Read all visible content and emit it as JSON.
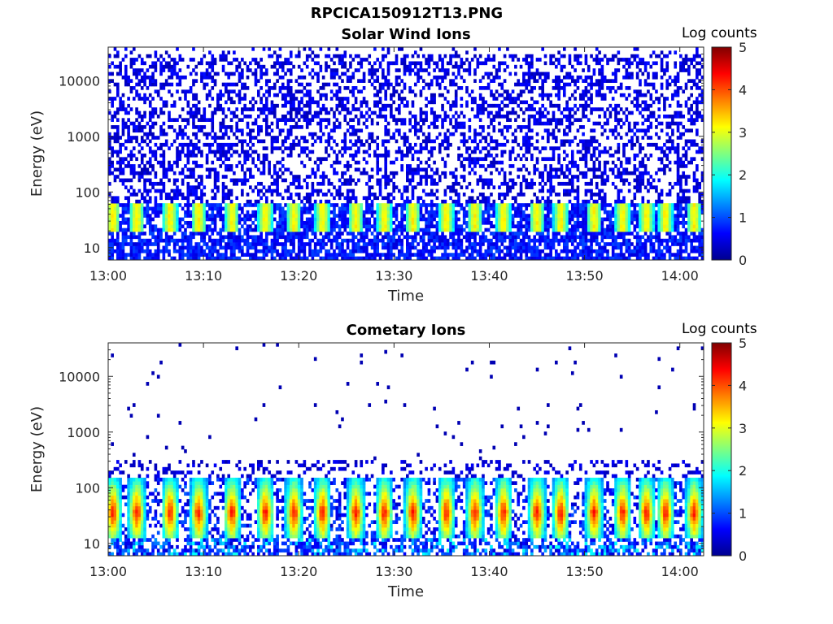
{
  "figure": {
    "title": "RPCICA150912T13.PNG"
  },
  "chart_data": [
    {
      "type": "heatmap",
      "title": "Solar Wind Ions",
      "xlabel": "Time",
      "ylabel": "Energy (eV)",
      "x_ticks": [
        "13:00",
        "13:10",
        "13:20",
        "13:30",
        "13:40",
        "13:50",
        "14:00"
      ],
      "x_range": [
        "13:00",
        "14:02"
      ],
      "y_scale": "log",
      "y_ticks": [
        "10",
        "100",
        "1000",
        "10000"
      ],
      "y_range": [
        6,
        40000
      ],
      "colorbar": {
        "label": "Log counts",
        "range": [
          0,
          5
        ],
        "ticks": [
          "0",
          "1",
          "2",
          "3",
          "4",
          "5"
        ]
      },
      "description_points": [
        {
          "time_min": 1,
          "energy_ev": 35,
          "log_counts": 2.8
        },
        {
          "time_min": 10,
          "energy_ev": 35,
          "log_counts": 2.6
        },
        {
          "time_min": 13,
          "energy_ev": 40,
          "log_counts": 3.0
        },
        {
          "time_min": 16,
          "energy_ev": 40,
          "log_counts": 3.0
        },
        {
          "time_min": 22,
          "energy_ev": 40,
          "log_counts": 2.9
        },
        {
          "time_min": 29,
          "energy_ev": 40,
          "log_counts": 2.9
        },
        {
          "time_min": 45,
          "energy_ev": 40,
          "log_counts": 3.0
        },
        {
          "time_min": 51,
          "energy_ev": 35,
          "log_counts": 2.8
        },
        {
          "time_min": 62,
          "energy_ev": 40,
          "log_counts": 3.0
        }
      ]
    },
    {
      "type": "heatmap",
      "title": "Cometary Ions",
      "xlabel": "Time",
      "ylabel": "Energy (eV)",
      "x_ticks": [
        "13:00",
        "13:10",
        "13:20",
        "13:30",
        "13:40",
        "13:50",
        "14:00"
      ],
      "x_range": [
        "13:00",
        "14:02"
      ],
      "y_scale": "log",
      "y_ticks": [
        "10",
        "100",
        "1000",
        "10000"
      ],
      "y_range": [
        6,
        40000
      ],
      "colorbar": {
        "label": "Log counts",
        "range": [
          0,
          5
        ],
        "ticks": [
          "0",
          "1",
          "2",
          "3",
          "4",
          "5"
        ]
      },
      "description_points": [
        {
          "time_min": 1,
          "energy_ev": 35,
          "log_counts": 3.8
        },
        {
          "time_min": 13,
          "energy_ev": 40,
          "log_counts": 4.2
        },
        {
          "time_min": 16,
          "energy_ev": 40,
          "log_counts": 4.3
        },
        {
          "time_min": 22,
          "energy_ev": 35,
          "log_counts": 4.2
        },
        {
          "time_min": 29,
          "energy_ev": 40,
          "log_counts": 4.3
        },
        {
          "time_min": 45,
          "energy_ev": 40,
          "log_counts": 4.2
        },
        {
          "time_min": 51,
          "energy_ev": 35,
          "log_counts": 4.3
        },
        {
          "time_min": 62,
          "energy_ev": 40,
          "log_counts": 4.2
        }
      ]
    }
  ]
}
